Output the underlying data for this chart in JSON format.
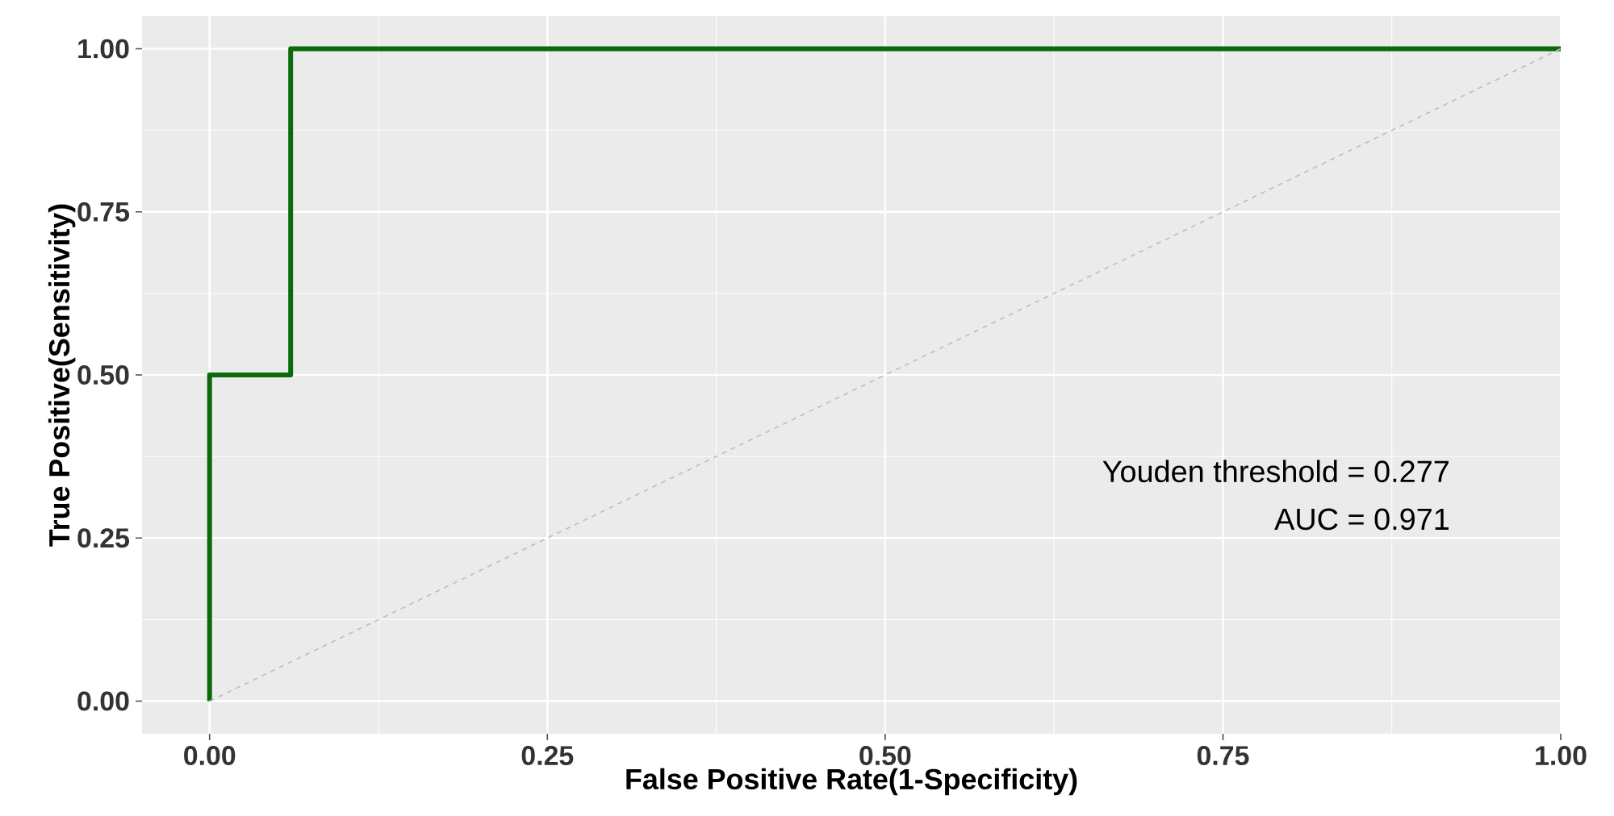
{
  "chart_data": {
    "type": "line",
    "xlabel": "False Positive Rate(1-Specificity)",
    "ylabel": "True Positive(Sensitivity)",
    "series": [
      {
        "color": "#0b6b0b",
        "x": [
          0,
          0,
          0.06,
          0.06,
          1
        ],
        "values": [
          0,
          0.5,
          0.5,
          1,
          1
        ],
        "line_style": "solid"
      },
      {
        "color": "#bdbdbd",
        "x": [
          0,
          1
        ],
        "values": [
          0,
          1
        ],
        "line_style": "dashed"
      }
    ],
    "xlim": [
      -0.05,
      1.0
    ],
    "ylim": [
      -0.05,
      1.05
    ],
    "xticks": [
      {
        "value": 0,
        "label": "0.00"
      },
      {
        "value": 0.25,
        "label": "0.25"
      },
      {
        "value": 0.5,
        "label": "0.50"
      },
      {
        "value": 0.75,
        "label": "0.75"
      },
      {
        "value": 1,
        "label": "1.00"
      }
    ],
    "yticks": [
      {
        "value": 0,
        "label": "0.00"
      },
      {
        "value": 0.25,
        "label": "0.25"
      },
      {
        "value": 0.5,
        "label": "0.50"
      },
      {
        "value": 0.75,
        "label": "0.75"
      },
      {
        "value": 1,
        "label": "1.00"
      }
    ],
    "grid": true,
    "annotations": [
      "Youden threshold = 0.277",
      "AUC = 0.971"
    ]
  }
}
